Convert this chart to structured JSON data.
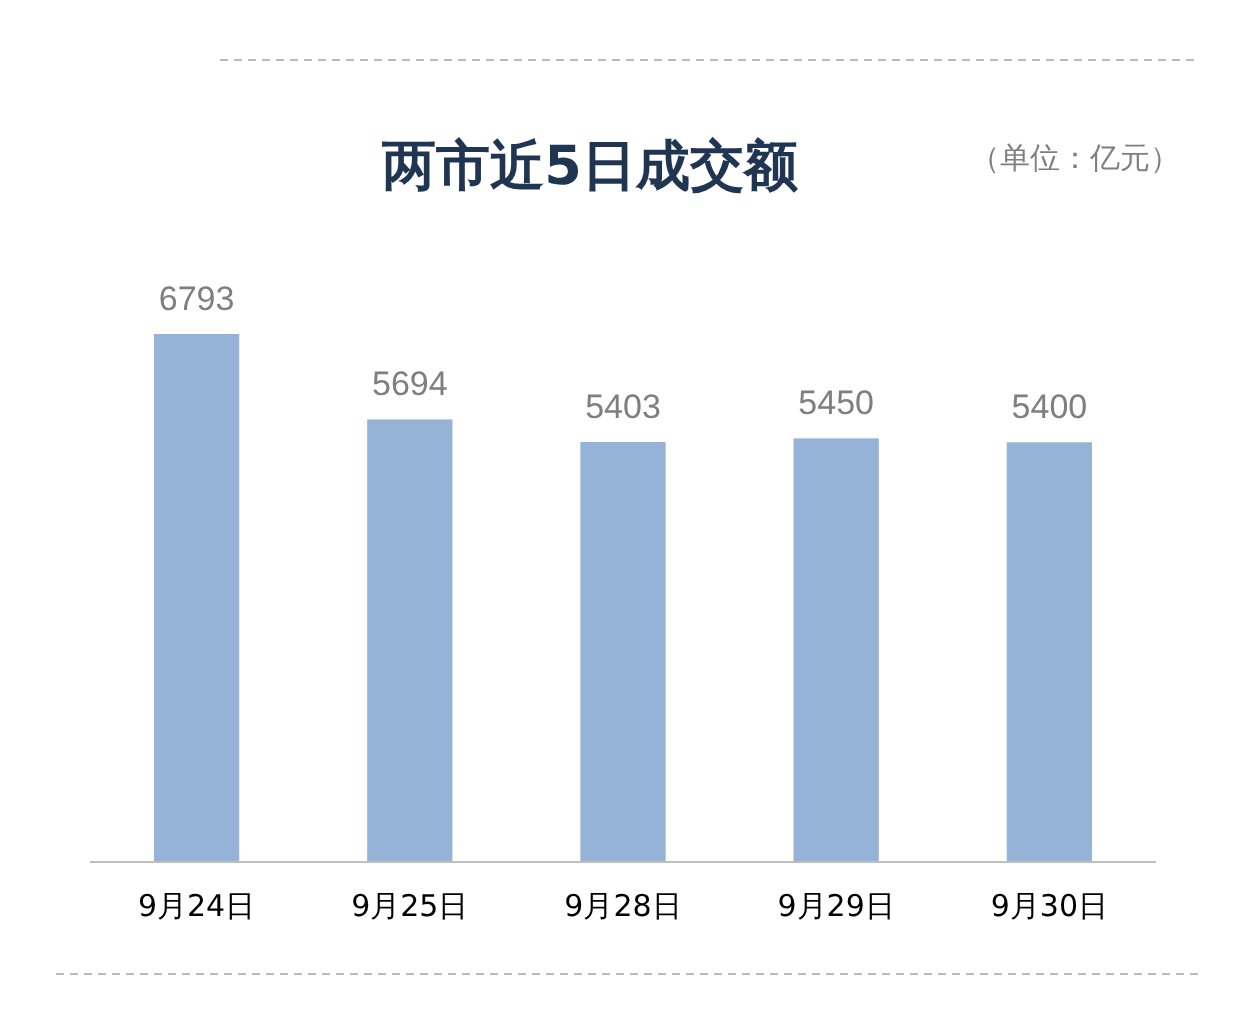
{
  "chart_data": {
    "type": "bar",
    "title": "两市近5日成交额",
    "subtitle": "（单位：亿元）",
    "categories": [
      "9月24日",
      "9月25日",
      "9月28日",
      "9月29日",
      "9月30日"
    ],
    "values": [
      6793,
      5694,
      5403,
      5450,
      5400
    ],
    "color": "#95b3d7",
    "data_labels": true
  }
}
